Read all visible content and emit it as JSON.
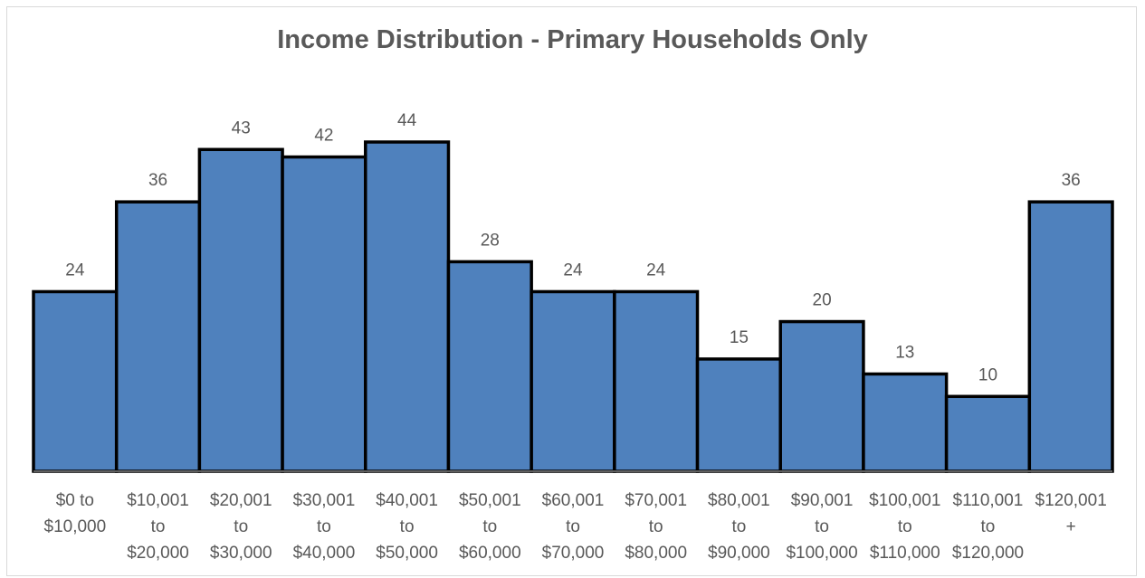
{
  "chart_data": {
    "type": "bar",
    "title": "Income Distribution - Primary Households Only",
    "xlabel": "",
    "ylabel": "",
    "categories": [
      [
        "$0 to",
        "$10,000"
      ],
      [
        "$10,001",
        "to",
        "$20,000"
      ],
      [
        "$20,001",
        "to",
        "$30,000"
      ],
      [
        "$30,001",
        "to",
        "$40,000"
      ],
      [
        "$40,001",
        "to",
        "$50,000"
      ],
      [
        "$50,001",
        "to",
        "$60,000"
      ],
      [
        "$60,001",
        "to",
        "$70,000"
      ],
      [
        "$70,001",
        "to",
        "$80,000"
      ],
      [
        "$80,001",
        "to",
        "$90,000"
      ],
      [
        "$90,001",
        "to",
        "$100,000"
      ],
      [
        "$100,001",
        "to",
        "$110,000"
      ],
      [
        "$110,001",
        "to",
        "$120,000"
      ],
      [
        "$120,001",
        "+"
      ]
    ],
    "values": [
      24,
      36,
      43,
      42,
      44,
      28,
      24,
      24,
      15,
      20,
      13,
      10,
      36
    ],
    "ylim": [
      0,
      44
    ],
    "grid": false,
    "legend": "none",
    "colors": {
      "bar_fill": "#4f81bd",
      "bar_edge": "#000000",
      "text": "#595959"
    }
  }
}
